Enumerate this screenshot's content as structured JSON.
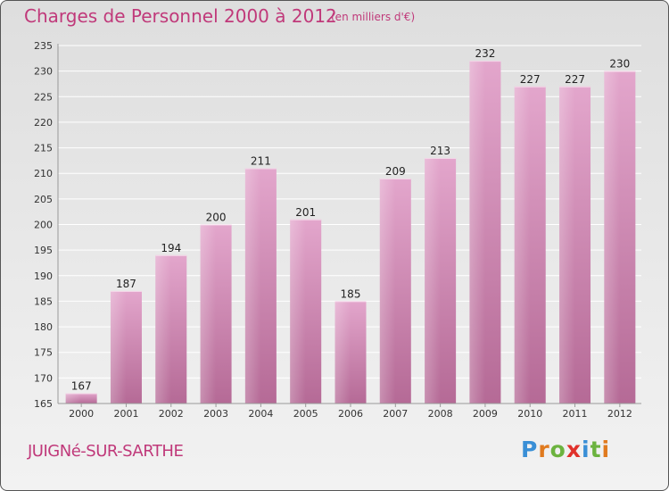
{
  "chart_data": {
    "type": "bar",
    "title": "Charges de Personnel 2000 à 2012",
    "subtitle": "(en milliers d'€)",
    "categories": [
      "2000",
      "2001",
      "2002",
      "2003",
      "2004",
      "2005",
      "2006",
      "2007",
      "2008",
      "2009",
      "2010",
      "2011",
      "2012"
    ],
    "values": [
      167,
      187,
      194,
      200,
      211,
      201,
      185,
      209,
      213,
      232,
      227,
      227,
      230
    ],
    "ylim": [
      165,
      235
    ],
    "yticks": [
      165,
      170,
      175,
      180,
      185,
      190,
      195,
      200,
      205,
      210,
      215,
      220,
      225,
      230,
      235
    ],
    "grid": true,
    "bar_color": "#d98cb8",
    "xlabel": "",
    "ylabel": ""
  },
  "footer": {
    "place": "JUIGNé-SUR-SARTHE",
    "logo_letters": [
      {
        "ch": "P",
        "color": "#3a8fd6"
      },
      {
        "ch": "r",
        "color": "#e07a1e"
      },
      {
        "ch": "o",
        "color": "#6cb33f"
      },
      {
        "ch": "x",
        "color": "#e0312b"
      },
      {
        "ch": "i",
        "color": "#3a8fd6"
      },
      {
        "ch": "t",
        "color": "#6cb33f"
      },
      {
        "ch": "i",
        "color": "#e07a1e"
      }
    ]
  }
}
